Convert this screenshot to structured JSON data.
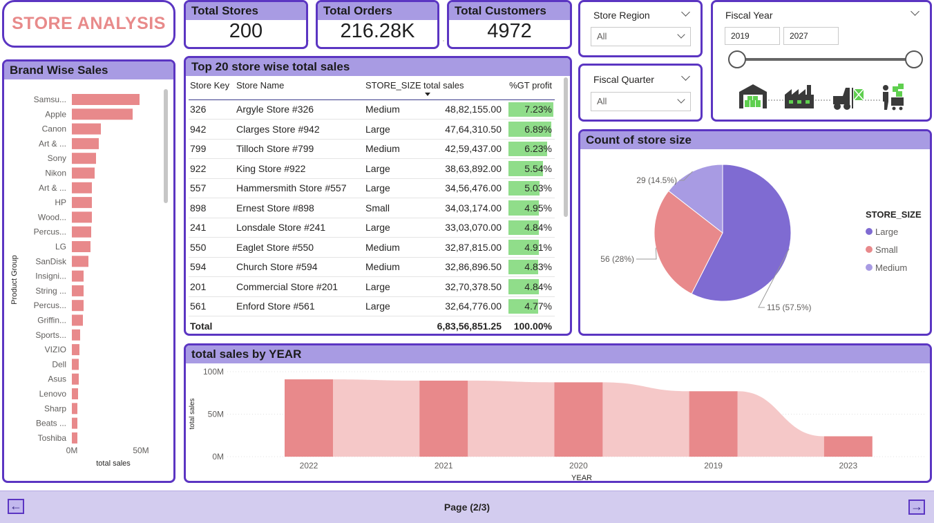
{
  "title": "STORE ANALYSIS",
  "kpis": {
    "stores_label": "Total Stores",
    "stores_value": "200",
    "orders_label": "Total Orders",
    "orders_value": "216.28K",
    "customers_label": "Total Customers",
    "customers_value": "4972"
  },
  "slicers": {
    "region_label": "Store Region",
    "region_value": "All",
    "quarter_label": "Fiscal Quarter",
    "quarter_value": "All",
    "year_label": "Fiscal Year",
    "year_from": "2019",
    "year_to": "2027"
  },
  "store_table": {
    "title": "Top 20 store wise total sales",
    "columns": [
      "Store Key",
      "Store Name",
      "STORE_SIZE",
      "total sales",
      "%GT profit"
    ],
    "rows": [
      [
        "326",
        "Argyle Store #326",
        "Medium",
        "48,82,155.00",
        "7.23%"
      ],
      [
        "942",
        "Clarges Store #942",
        "Large",
        "47,64,310.50",
        "6.89%"
      ],
      [
        "799",
        "Tilloch Store #799",
        "Medium",
        "42,59,437.00",
        "6.23%"
      ],
      [
        "922",
        "King Store #922",
        "Large",
        "38,63,892.00",
        "5.54%"
      ],
      [
        "557",
        "Hammersmith Store #557",
        "Large",
        "34,56,476.00",
        "5.03%"
      ],
      [
        "898",
        "Ernest Store #898",
        "Small",
        "34,03,174.00",
        "4.95%"
      ],
      [
        "241",
        "Lonsdale Store #241",
        "Large",
        "33,03,070.00",
        "4.84%"
      ],
      [
        "550",
        "Eaglet Store #550",
        "Medium",
        "32,87,815.00",
        "4.91%"
      ],
      [
        "594",
        "Church Store #594",
        "Medium",
        "32,86,896.50",
        "4.83%"
      ],
      [
        "201",
        "Commercial Store #201",
        "Large",
        "32,70,378.50",
        "4.84%"
      ],
      [
        "561",
        "Enford Store #561",
        "Large",
        "32,64,776.00",
        "4.77%"
      ]
    ],
    "total_label": "Total",
    "total_sales": "6,83,56,851.25",
    "total_pct": "100.00%"
  },
  "footer": {
    "page_label": "Page (2/3)"
  },
  "chart_data": [
    {
      "type": "bar",
      "orientation": "horizontal",
      "title": "Brand Wise Sales",
      "ylabel": "Product Group",
      "xlabel": "total sales",
      "xticks": [
        "0M",
        "50M"
      ],
      "xlim": [
        0,
        55
      ],
      "categories": [
        "Samsu...",
        "Apple",
        "Canon",
        "Art & ...",
        "Sony",
        "Nikon",
        "Art & ...",
        "HP",
        "Wood...",
        "Percus...",
        "LG",
        "SanDisk",
        "Insigni...",
        "String ...",
        "Percus...",
        "Griffin...",
        "Sports...",
        "VIZIO",
        "Dell",
        "Asus",
        "Lenovo",
        "Sharp",
        "Beats ...",
        "Toshiba"
      ],
      "values": [
        49,
        44,
        21,
        19.5,
        17.5,
        16.5,
        14.5,
        14.5,
        14.5,
        14,
        13.5,
        12,
        8.5,
        8.5,
        8.5,
        8,
        6,
        5.5,
        5,
        5,
        4.5,
        4,
        4,
        4
      ],
      "color": "#e8898b"
    },
    {
      "type": "pie",
      "title": "Count of store size",
      "legend_title": "STORE_SIZE",
      "legend_position": "right",
      "slices": [
        {
          "name": "Large",
          "value": 115,
          "label": "115 (57.5%)",
          "color": "#7f6bd2"
        },
        {
          "name": "Small",
          "value": 56,
          "label": "56 (28%)",
          "color": "#e8898b"
        },
        {
          "name": "Medium",
          "value": 29,
          "label": "29 (14.5%)",
          "color": "#a89be3"
        }
      ]
    },
    {
      "type": "bar",
      "title": "total sales by YEAR",
      "xlabel": "YEAR",
      "ylabel": "total sales",
      "yticks": [
        "100M",
        "50M",
        "0M"
      ],
      "ylim": [
        0,
        100
      ],
      "categories": [
        "2022",
        "2021",
        "2020",
        "2019",
        "2023"
      ],
      "values": [
        91,
        89.5,
        87.5,
        77,
        24
      ],
      "color": "#e8898b",
      "ribbon_color": "#f5c8c8"
    }
  ],
  "colors": {
    "accent": "#5b35c2",
    "header": "#a89be3",
    "title": "#e88a8a",
    "gt_bar": "#90dd8a"
  },
  "icons": [
    "warehouse-icon",
    "factory-icon",
    "forklift-icon",
    "shopping-cart-icon"
  ]
}
